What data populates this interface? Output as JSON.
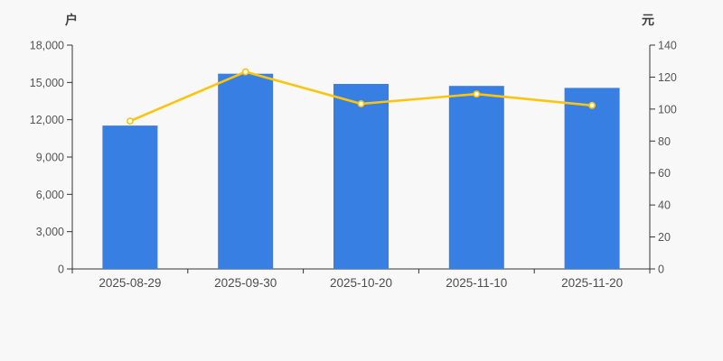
{
  "chart_data": {
    "type": "bar",
    "subtype": "bar-line-combo-dual-axis",
    "title": "",
    "categories": [
      "2025-08-29",
      "2025-09-30",
      "2025-10-20",
      "2025-11-10",
      "2025-11-20"
    ],
    "series": [
      {
        "name": "户",
        "type": "bar",
        "axis": "left",
        "color": "#377fe2",
        "values": [
          11530,
          15700,
          14880,
          14720,
          14560
        ]
      },
      {
        "name": "元",
        "type": "line",
        "axis": "right",
        "color": "#fbc50f",
        "marker_fill": "#ffffff",
        "values": [
          92.5,
          123.3,
          103.3,
          109.4,
          102.3
        ]
      }
    ],
    "left_axis": {
      "unit": "户",
      "min": 0,
      "max": 18000,
      "tick_step": 3000,
      "tick_labels": [
        "0",
        "3,000",
        "6,000",
        "9,000",
        "12,000",
        "15,000",
        "18,000"
      ]
    },
    "right_axis": {
      "unit": "元",
      "min": 0,
      "max": 140,
      "tick_step": 20,
      "tick_labels": [
        "0",
        "20",
        "40",
        "60",
        "80",
        "100",
        "120",
        "140"
      ]
    },
    "grid": false,
    "legend": false,
    "colors": {
      "background": "#f8f8f8",
      "axis_line": "#333333",
      "tick_text": "#555555"
    }
  }
}
